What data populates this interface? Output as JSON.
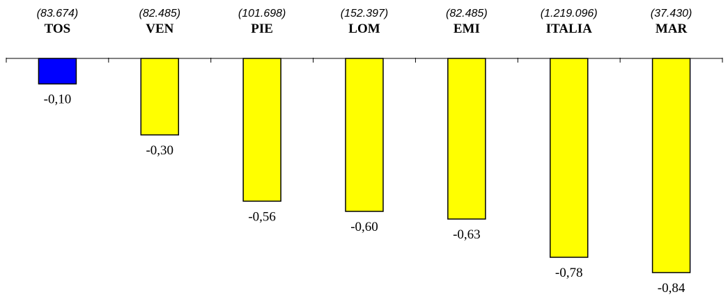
{
  "chart_data": {
    "type": "bar",
    "categories": [
      "TOS",
      "VEN",
      "PIE",
      "LOM",
      "EMI",
      "ITALIA",
      "MAR"
    ],
    "counts": [
      "(83.674)",
      "(82.485)",
      "(101.698)",
      "(152.397)",
      "(82.485)",
      "(1.219.096)",
      "(37.430)"
    ],
    "values": [
      -0.1,
      -0.3,
      -0.56,
      -0.6,
      -0.63,
      -0.78,
      -0.84
    ],
    "value_labels": [
      "-0,10",
      "-0,30",
      "-0,56",
      "-0,60",
      "-0,63",
      "-0,78",
      "-0,84"
    ],
    "ylim": [
      -0.84,
      0
    ],
    "grid": false,
    "colors": {
      "highlight": "#0000ff",
      "default": "#ffff00",
      "highlight_category": "TOS"
    }
  }
}
